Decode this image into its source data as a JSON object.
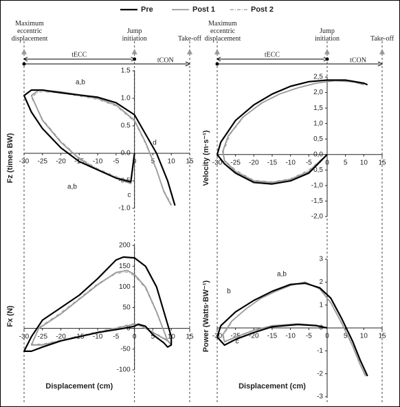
{
  "legend": {
    "position": "top"
  },
  "chart_data": [
    {
      "type": "line",
      "ylabel": "Fz (times BW)",
      "xlim": [
        -30,
        15
      ],
      "ylim": [
        -1,
        1.5
      ],
      "xticks": [
        -30,
        -25,
        -20,
        -15,
        -10,
        -5,
        0,
        5,
        10,
        15
      ],
      "yticks": [
        {
          "value": 1.5,
          "label": "1.5"
        },
        {
          "value": 1,
          "label": "1.0"
        },
        {
          "value": 0.5,
          "label": "0.5"
        },
        {
          "value": 0,
          "label": "0.0"
        },
        {
          "value": -0.5,
          "label": "-0.5"
        },
        {
          "value": -1,
          "label": "-1.0"
        }
      ],
      "events": [
        {
          "label": "Maximum eccentric displacement",
          "x": -30
        },
        {
          "label": "Jump initiation",
          "x": 0
        },
        {
          "label": "Take-off",
          "x": 15
        }
      ],
      "phases": [
        "tECC",
        "tCON"
      ],
      "notes": [
        "a,b",
        "a,b",
        "d",
        "c"
      ],
      "series": [
        {
          "name": "Pre",
          "color": "#000000",
          "x": [
            0,
            -1,
            -5,
            -10,
            -15,
            -20,
            -25,
            -28,
            -30,
            -28,
            -25,
            -20,
            -10,
            -5,
            0,
            3,
            6,
            9,
            11
          ],
          "values": [
            0,
            -0.52,
            -0.45,
            -0.3,
            -0.15,
            0.1,
            0.45,
            0.75,
            1.05,
            1.15,
            1.15,
            1.1,
            1.02,
            0.92,
            0.7,
            0.35,
            0,
            -0.5,
            -0.95
          ]
        },
        {
          "name": "Post 1",
          "color": "#999999",
          "x": [
            0,
            -1,
            -5,
            -10,
            -15,
            -20,
            -25,
            -28,
            -26,
            -20,
            -10,
            -5,
            0,
            3,
            6,
            8,
            10
          ],
          "values": [
            0,
            -0.55,
            -0.45,
            -0.3,
            -0.1,
            0.2,
            0.6,
            1.05,
            1.15,
            1.12,
            1.0,
            0.88,
            0.6,
            0.2,
            -0.3,
            -0.7,
            -0.95
          ]
        },
        {
          "name": "Post 2",
          "color": "#aaaaaa",
          "x": [
            0,
            -1,
            -5,
            -10,
            -15,
            -20,
            -25,
            -28,
            -26,
            -20,
            -10,
            -5,
            0,
            3,
            6,
            8,
            10
          ],
          "values": [
            0,
            -0.5,
            -0.42,
            -0.28,
            -0.08,
            0.22,
            0.62,
            1.02,
            1.12,
            1.1,
            0.98,
            0.86,
            0.58,
            0.18,
            -0.3,
            -0.68,
            -0.93
          ]
        }
      ]
    },
    {
      "type": "line",
      "ylabel": "Velocity (m·s⁻¹)",
      "xlim": [
        -30,
        15
      ],
      "ylim": [
        -2,
        2.5
      ],
      "xticks": [
        -30,
        -25,
        -20,
        -15,
        -10,
        -5,
        0,
        5,
        10,
        15
      ],
      "yticks": [
        {
          "value": 2.5,
          "label": "2,5"
        },
        {
          "value": 2,
          "label": "2,0"
        },
        {
          "value": 1.5,
          "label": "1,5"
        },
        {
          "value": 1,
          "label": "1,0"
        },
        {
          "value": 0.5,
          "label": "0,5"
        },
        {
          "value": 0,
          "label": "0,0"
        },
        {
          "value": -0.5,
          "label": "-0,5"
        },
        {
          "value": -1,
          "label": "-1,0"
        },
        {
          "value": -1.5,
          "label": "-1,5"
        },
        {
          "value": -2,
          "label": "-2,0"
        }
      ],
      "events": [
        {
          "label": "Maximum eccentric displacement",
          "x": -30
        },
        {
          "label": "Jump initiation",
          "x": 0
        },
        {
          "label": "Take-off",
          "x": 15
        }
      ],
      "phases": [
        "tECC",
        "tCON"
      ],
      "series": [
        {
          "name": "Pre",
          "color": "#000000",
          "x": [
            0,
            -5,
            -10,
            -15,
            -20,
            -25,
            -28,
            -30,
            -29,
            -25,
            -20,
            -15,
            -10,
            -5,
            0,
            5,
            10,
            11
          ],
          "values": [
            0,
            -0.6,
            -0.85,
            -0.95,
            -0.9,
            -0.6,
            -0.3,
            0,
            0.4,
            1.1,
            1.6,
            1.95,
            2.2,
            2.35,
            2.4,
            2.4,
            2.3,
            2.25
          ]
        },
        {
          "name": "Post 1",
          "color": "#999999",
          "x": [
            0,
            -5,
            -10,
            -15,
            -20,
            -25,
            -28,
            -28.5,
            -27,
            -23,
            -18,
            -13,
            -8,
            -3,
            2,
            7,
            10
          ],
          "values": [
            0,
            -0.55,
            -0.8,
            -0.9,
            -0.85,
            -0.55,
            -0.2,
            0.1,
            0.6,
            1.2,
            1.65,
            1.95,
            2.15,
            2.3,
            2.38,
            2.35,
            2.25
          ]
        },
        {
          "name": "Post 2",
          "color": "#aaaaaa",
          "x": [
            0,
            -5,
            -10,
            -15,
            -20,
            -25,
            -28,
            -28.3,
            -26.5,
            -22.5,
            -17.5,
            -12.5,
            -7.5,
            -2.5,
            2.5,
            7.5,
            10
          ],
          "values": [
            0,
            -0.5,
            -0.78,
            -0.88,
            -0.83,
            -0.5,
            -0.18,
            0.1,
            0.65,
            1.25,
            1.68,
            1.98,
            2.17,
            2.31,
            2.38,
            2.33,
            2.25
          ]
        }
      ]
    },
    {
      "type": "line",
      "ylabel": "Fx (N)",
      "xlabel": "Displacement (cm)",
      "xlim": [
        -30,
        15
      ],
      "ylim": [
        -100,
        200
      ],
      "xticks": [
        -30,
        -25,
        -20,
        -15,
        -10,
        -5,
        0,
        5,
        10,
        15
      ],
      "yticks": [
        200,
        150,
        100,
        50,
        0,
        -50,
        -100
      ],
      "series": [
        {
          "name": "Pre",
          "color": "#000000",
          "x": [
            0,
            -3,
            -10,
            -20,
            -25,
            -28,
            -30,
            -28,
            -25,
            -20,
            -15,
            -10,
            -5,
            -3,
            0,
            3,
            6,
            8,
            10,
            10,
            9,
            8,
            5,
            3,
            1,
            0
          ],
          "values": [
            5,
            0,
            -10,
            -30,
            -45,
            -55,
            -55,
            -20,
            20,
            50,
            80,
            120,
            165,
            172,
            170,
            150,
            100,
            40,
            -20,
            -40,
            -45,
            -35,
            -15,
            5,
            10,
            5
          ]
        },
        {
          "name": "Post 1",
          "color": "#999999",
          "x": [
            0,
            -5,
            -15,
            -25,
            -28,
            -26,
            -20,
            -15,
            -10,
            -5,
            -2,
            0,
            3,
            6,
            9,
            10,
            9,
            5,
            2,
            0
          ],
          "values": [
            10,
            0,
            -20,
            -40,
            -40,
            0,
            35,
            70,
            105,
            135,
            140,
            130,
            100,
            40,
            -30,
            -40,
            -30,
            -10,
            5,
            10
          ]
        },
        {
          "name": "Post 2",
          "color": "#aaaaaa",
          "x": [
            0,
            -5,
            -15,
            -25,
            -28,
            -26,
            -20,
            -15,
            -10,
            -5,
            -2,
            0,
            3,
            6,
            9,
            10,
            9,
            5,
            2,
            0
          ],
          "values": [
            12,
            2,
            -18,
            -38,
            -38,
            2,
            38,
            72,
            108,
            132,
            136,
            127,
            97,
            38,
            -28,
            -38,
            -28,
            -8,
            7,
            12
          ]
        }
      ]
    },
    {
      "type": "line",
      "ylabel": "Power (Watts·BW⁻¹)",
      "xlabel": "Displacement (cm)",
      "xlim": [
        -30,
        15
      ],
      "ylim": [
        -3,
        3
      ],
      "xticks": [
        -30,
        -25,
        -20,
        -15,
        -10,
        -5,
        0,
        5,
        10,
        15
      ],
      "yticks": [
        3,
        2,
        1,
        0,
        -1,
        -2,
        -3
      ],
      "notes": [
        "a,b",
        "b",
        "c"
      ],
      "series": [
        {
          "name": "Pre",
          "color": "#000000",
          "x": [
            0,
            -3,
            -8,
            -15,
            -20,
            -25,
            -28,
            -30,
            -29,
            -25,
            -20,
            -15,
            -10,
            -6,
            -2,
            1,
            4,
            7,
            9,
            11
          ],
          "values": [
            0,
            0.1,
            0.15,
            0.05,
            -0.2,
            -0.5,
            -0.75,
            -0.4,
            0.1,
            0.7,
            1.2,
            1.6,
            1.9,
            1.95,
            1.75,
            1.3,
            0.4,
            -0.6,
            -1.4,
            -2.1
          ]
        },
        {
          "name": "Post 1",
          "color": "#999999",
          "x": [
            0,
            -3,
            -8,
            -15,
            -20,
            -25,
            -28,
            -28.5,
            -26,
            -22,
            -18,
            -14,
            -10,
            -6,
            -2,
            1,
            4,
            7,
            9,
            10.5
          ],
          "values": [
            0,
            0.12,
            0.18,
            0.1,
            -0.1,
            -0.4,
            -0.6,
            -0.3,
            0.3,
            0.85,
            1.3,
            1.6,
            1.85,
            2.0,
            1.7,
            1.1,
            0.2,
            -0.8,
            -1.6,
            -2.1
          ]
        },
        {
          "name": "Post 2",
          "color": "#aaaaaa",
          "x": [
            0,
            -3,
            -8,
            -15,
            -20,
            -25,
            -28,
            -28.3,
            -25.8,
            -21.8,
            -17.8,
            -13.8,
            -9.8,
            -5.8,
            -1.8,
            1.2,
            4.2,
            7.2,
            9.2,
            10.5
          ],
          "values": [
            0,
            0.1,
            0.16,
            0.08,
            -0.12,
            -0.42,
            -0.62,
            -0.3,
            0.32,
            0.88,
            1.32,
            1.62,
            1.87,
            1.98,
            1.68,
            1.05,
            0.15,
            -0.85,
            -1.65,
            -2.15
          ]
        }
      ]
    }
  ]
}
